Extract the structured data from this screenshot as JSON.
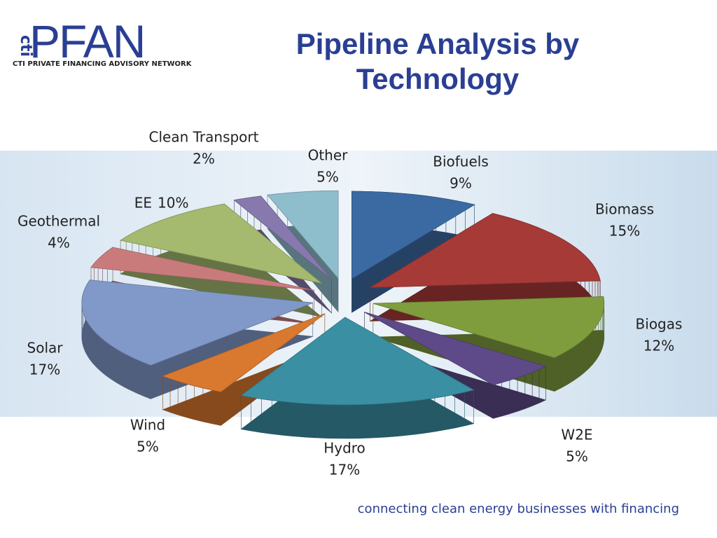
{
  "logo": {
    "letters": "PFAN",
    "side": "cti",
    "tagline": "CTI PRIVATE FINANCING ADVISORY NETWORK"
  },
  "chart_data": {
    "type": "pie",
    "title": "Pipeline Analysis by Technology",
    "categories": [
      "Biofuels",
      "Biomass",
      "Biogas",
      "W2E",
      "Hydro",
      "Wind",
      "Solar",
      "Geothermal",
      "EE",
      "Clean Transport",
      "Other"
    ],
    "values": [
      9,
      15,
      12,
      5,
      17,
      5,
      17,
      4,
      10,
      2,
      5
    ],
    "value_labels": [
      "9%",
      "15%",
      "12%",
      "5%",
      "17%",
      "5%",
      "17%",
      "4%",
      "10%",
      "2%",
      "5%"
    ],
    "colors": [
      "#3b6aa3",
      "#a63a37",
      "#7f9d3d",
      "#5e4a88",
      "#3a8fa3",
      "#d9782f",
      "#8199c9",
      "#c97b7c",
      "#a5ba6e",
      "#8779ad",
      "#8ebdcc"
    ]
  },
  "footer": "connecting clean energy businesses with financing"
}
